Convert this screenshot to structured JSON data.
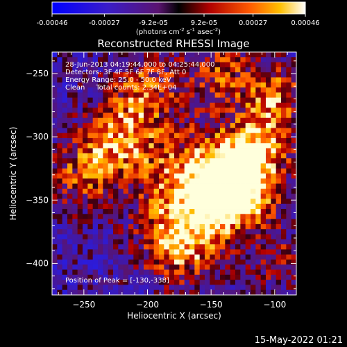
{
  "colorbar": {
    "ticks": [
      "-0.00046",
      "-0.00027",
      "-9.2e-05",
      "9.2e-05",
      "0.00027",
      "0.00046"
    ],
    "tick_values": [
      -0.00046,
      -0.00027,
      -9.2e-05,
      9.2e-05,
      0.00027,
      0.00046
    ],
    "range": [
      -0.00046,
      0.00046
    ],
    "unit_main": "(photons cm",
    "unit_sup1": "-2",
    "unit_mid": " s",
    "unit_sup2": "-1",
    "unit_mid2": " asec",
    "unit_sup3": "-2",
    "unit_end": ")"
  },
  "chart_data": {
    "type": "heatmap",
    "title": "Reconstructed RHESSI Image",
    "xlabel": "Heliocentric X (arcsec)",
    "ylabel": "Heliocentric Y (arcsec)",
    "xlim": [
      -275,
      -83
    ],
    "ylim": [
      -425,
      -233
    ],
    "xticks": [
      -250,
      -200,
      -150,
      -100
    ],
    "yticks": [
      -250,
      -300,
      -350,
      -400
    ],
    "annotations": [
      "28-Jun-2013 04:19:44.000 to 04:25:44.000",
      "Detectors: 3F 4F 5F 6F 7F 8F, Att 0",
      "Energy Range: 25.0 - 50.0 keV",
      "Clean     Total counts: 2.34E+04"
    ],
    "peak_label": "Position of Peak = [-130,-338]",
    "peak": [
      -130,
      -338
    ],
    "flux_range": [
      -0.00046,
      0.00046
    ]
  },
  "footer": {
    "timestamp": "15-May-2022 01:21"
  }
}
